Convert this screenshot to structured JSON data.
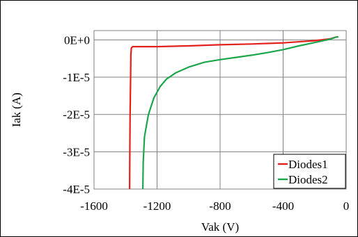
{
  "chart_data": {
    "type": "line",
    "title": "",
    "xlabel": "Vak (V)",
    "ylabel": "Iak (A)",
    "xlim": [
      -1600,
      0
    ],
    "ylim": [
      -4e-05,
      2.5e-06
    ],
    "x_ticks": [
      {
        "value": -1600,
        "label": "-1600"
      },
      {
        "value": -1200,
        "label": "-1200"
      },
      {
        "value": -800,
        "label": "-800"
      },
      {
        "value": -400,
        "label": "-400"
      },
      {
        "value": 0,
        "label": "0"
      }
    ],
    "y_ticks": [
      {
        "value": 0,
        "label": "0E+0"
      },
      {
        "value": -1e-05,
        "label": "-1E-5"
      },
      {
        "value": -2e-05,
        "label": "-2E-5"
      },
      {
        "value": -3e-05,
        "label": "-3E-5"
      },
      {
        "value": -4e-05,
        "label": "-4E-5"
      }
    ],
    "grid": true,
    "legend_position": "bottom-right",
    "series": [
      {
        "name": "Diodes1",
        "color": "#e3201b",
        "points": [
          [
            -1374,
            -4e-05
          ],
          [
            -1373,
            -3e-05
          ],
          [
            -1371,
            -2e-05
          ],
          [
            -1368,
            -1e-05
          ],
          [
            -1366,
            -4e-06
          ],
          [
            -1363,
            -2.2e-06
          ],
          [
            -1355,
            -1.8e-06
          ],
          [
            -1200,
            -1.8e-06
          ],
          [
            -1000,
            -1.6e-06
          ],
          [
            -800,
            -1.3e-06
          ],
          [
            -600,
            -1.1e-06
          ],
          [
            -400,
            -8e-07
          ],
          [
            -200,
            -2e-07
          ],
          [
            -100,
            3e-07
          ],
          [
            -60,
            8e-07
          ],
          [
            -50,
            8e-07
          ]
        ]
      },
      {
        "name": "Diodes2",
        "color": "#1aa64a",
        "points": [
          [
            -1290,
            -4e-05
          ],
          [
            -1288,
            -3.3e-05
          ],
          [
            -1280,
            -2.6e-05
          ],
          [
            -1255,
            -2e-05
          ],
          [
            -1220,
            -1.55e-05
          ],
          [
            -1180,
            -1.25e-05
          ],
          [
            -1140,
            -1.05e-05
          ],
          [
            -1080,
            -8.8e-06
          ],
          [
            -1000,
            -7.3e-06
          ],
          [
            -900,
            -6e-06
          ],
          [
            -800,
            -5.3e-06
          ],
          [
            -700,
            -4.7e-06
          ],
          [
            -600,
            -4.1e-06
          ],
          [
            -500,
            -3.4e-06
          ],
          [
            -400,
            -2.6e-06
          ],
          [
            -300,
            -1.6e-06
          ],
          [
            -200,
            -7e-07
          ],
          [
            -100,
            2e-07
          ],
          [
            -60,
            8e-07
          ],
          [
            -50,
            8e-07
          ]
        ]
      }
    ]
  }
}
